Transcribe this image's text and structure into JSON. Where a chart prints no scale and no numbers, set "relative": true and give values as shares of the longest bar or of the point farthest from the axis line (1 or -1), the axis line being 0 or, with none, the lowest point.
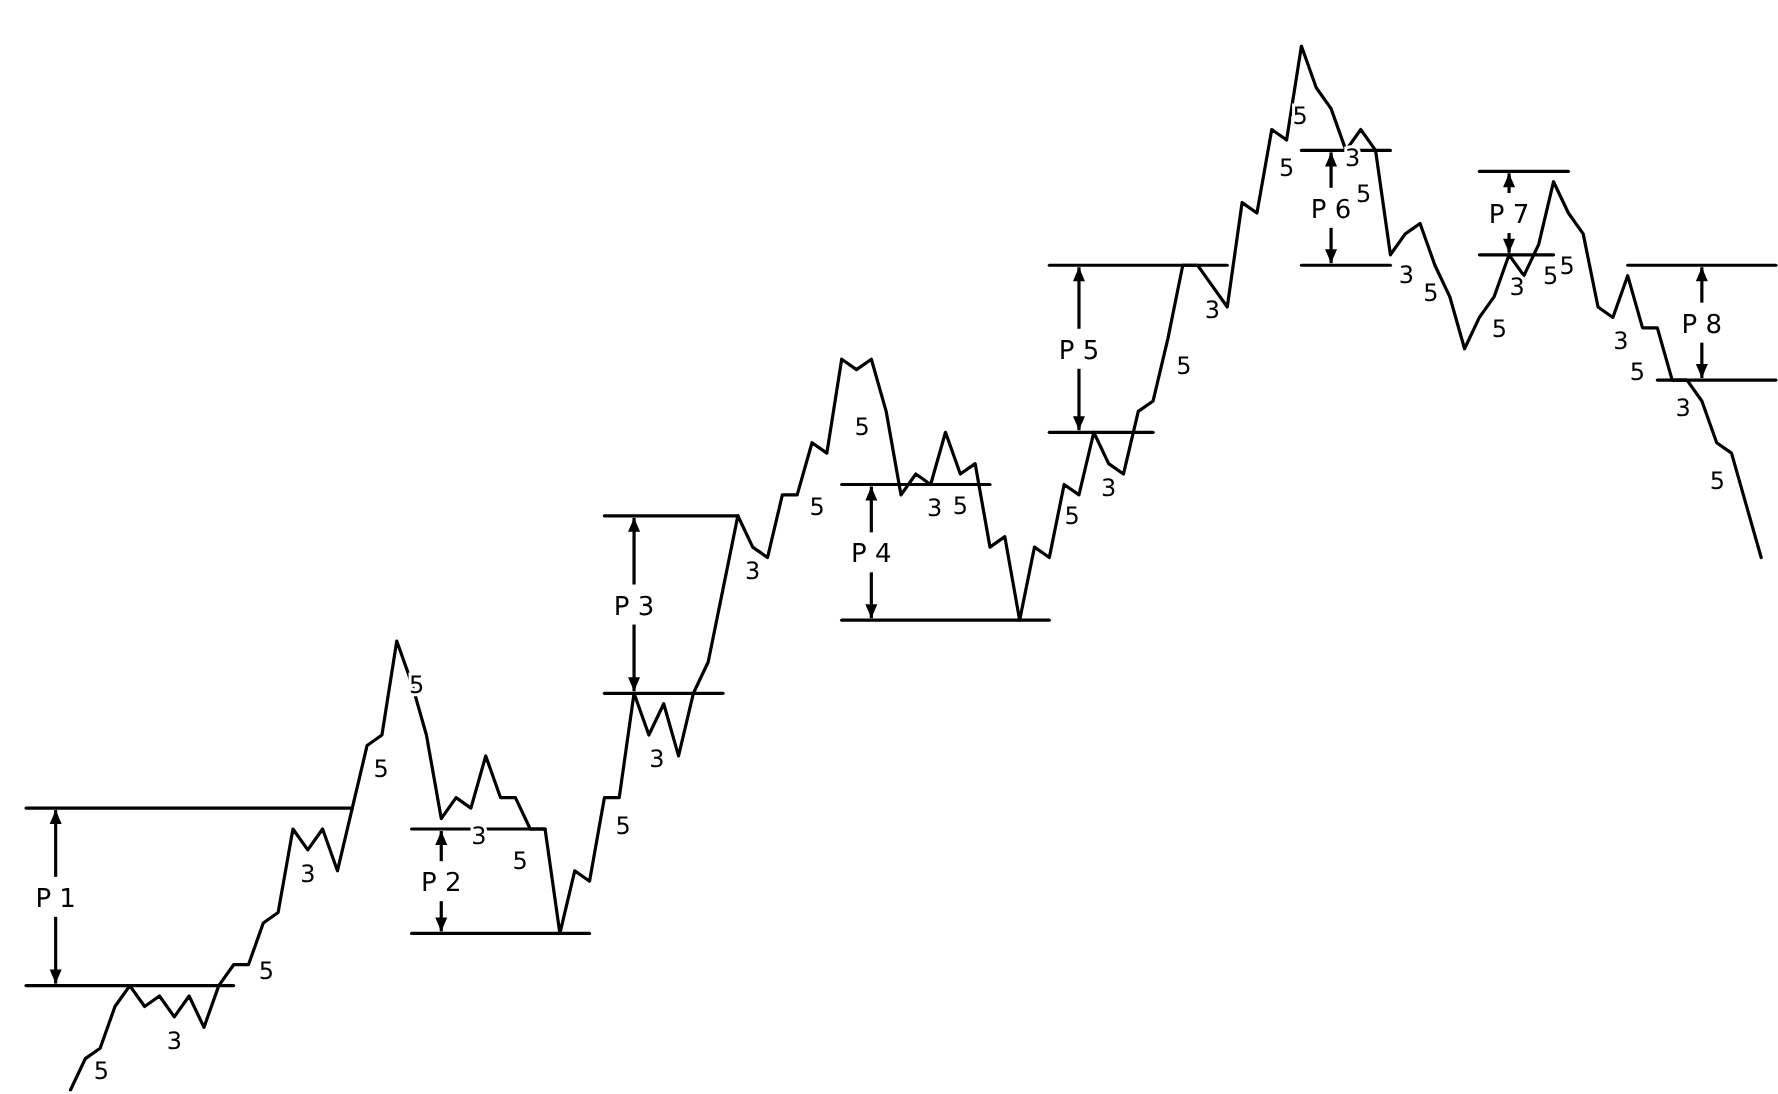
{
  "chart_data": {
    "type": "line",
    "relative": true,
    "marker": "none",
    "annotations": [
      "P 1",
      "P 2",
      "P 3",
      "P 4",
      "P 5",
      "P 6",
      "P 7",
      "P 8",
      "5",
      "3",
      "5",
      "3",
      "5",
      "5",
      "3",
      "5",
      "5",
      "3",
      "3",
      "5",
      "5",
      "3",
      "5",
      "5",
      "3",
      "5",
      "3",
      "5",
      "5",
      "3",
      "5",
      "3",
      "5",
      "5",
      "3",
      "5",
      "5",
      "3",
      "5",
      "3",
      "5"
    ],
    "categories": [
      null,
      null,
      null,
      null,
      null,
      null,
      null,
      null,
      null,
      null,
      null,
      null,
      null,
      null,
      null,
      null,
      null,
      null,
      null,
      null,
      null,
      null,
      null,
      null,
      null,
      null,
      null,
      null,
      null,
      null,
      null,
      null,
      null,
      null,
      null,
      null,
      null,
      null,
      null,
      null,
      null,
      null,
      null,
      null,
      null,
      null,
      null,
      null,
      null,
      null,
      null,
      null,
      null,
      null,
      null,
      null,
      null,
      null,
      null,
      null,
      null,
      null,
      null,
      null,
      null,
      null,
      null,
      null,
      null,
      null,
      null,
      null,
      null,
      null,
      null,
      null,
      null,
      null,
      null,
      null,
      null,
      null,
      null,
      null,
      null,
      null,
      null,
      null,
      null,
      null,
      null,
      null,
      null,
      null,
      null,
      null,
      null,
      null,
      null,
      null,
      null,
      null,
      null,
      null,
      null,
      null,
      null,
      null,
      null,
      null,
      null,
      null,
      null,
      null,
      null,
      null,
      null,
      null,
      null
    ],
    "series": [
      {
        "color": "#000000",
        "values": [
          null,
          null,
          null,
          0,
          0.03,
          0.04,
          0.08,
          0.1,
          0.08,
          0.09,
          0.07,
          0.09,
          0.06,
          0.1,
          0.12,
          0.12,
          0.16,
          0.17,
          0.25,
          0.23,
          0.25,
          0.21,
          0.27,
          0.33,
          0.34,
          0.43,
          0.39,
          0.34,
          0.26,
          0.28,
          0.27,
          0.32,
          0.28,
          0.28,
          0.25,
          0.25,
          0.15,
          0.21,
          0.2,
          0.28,
          0.28,
          0.38,
          0.34,
          0.37,
          0.32,
          0.38,
          0.41,
          0.48,
          0.55,
          0.52,
          0.51,
          0.57,
          0.57,
          0.62,
          0.61,
          0.7,
          0.69,
          0.7,
          0.65,
          0.57,
          0.59,
          0.58,
          0.63,
          0.59,
          0.6,
          0.52,
          0.53,
          0.45,
          0.52,
          0.51,
          0.58,
          0.57,
          0.63,
          0.6,
          0.59,
          0.65,
          0.66,
          0.72,
          0.79,
          0.79,
          0.77,
          0.75,
          0.85,
          0.84,
          0.92,
          0.91,
          1,
          0.96,
          0.94,
          0.9,
          0.92,
          0.9,
          0.8,
          0.82,
          0.83,
          0.79,
          0.76,
          0.71,
          0.74,
          0.76,
          0.8,
          0.78,
          0.81,
          0.87,
          0.84,
          0.82,
          0.75,
          0.74,
          0.78,
          0.73,
          0.73,
          0.68,
          0.68,
          0.66,
          0.62,
          0.61,
          0.56,
          0.51,
          null
        ]
      },
      {
        "color": "#000000",
        "values": [
          0.27,
          0.27,
          0.27,
          0.27,
          0.27,
          0.27,
          0.27,
          0.27,
          0.27,
          0.27,
          0.27,
          0.27,
          0.27,
          0.27,
          0.27,
          0.27,
          0.27,
          0.27,
          0.27,
          0.27,
          0.27,
          0.27,
          0.27,
          null,
          null,
          null,
          null,
          null,
          null,
          null,
          null,
          null,
          null,
          null,
          null,
          null,
          null,
          null,
          null,
          null,
          null,
          null,
          null,
          null,
          null,
          null,
          null,
          null,
          null,
          null,
          null,
          null,
          null,
          null,
          null,
          null,
          null,
          null,
          null,
          null,
          null,
          null,
          null,
          null,
          null,
          null,
          null,
          null,
          null,
          null,
          null,
          null,
          null,
          null,
          null,
          null,
          null,
          null,
          null,
          null,
          null,
          null,
          null,
          null,
          null,
          null,
          null,
          null,
          null,
          null,
          null,
          null,
          null,
          null,
          null,
          null,
          null,
          null,
          null,
          null,
          null,
          null,
          null,
          null,
          null,
          null,
          null,
          null,
          null,
          null,
          null,
          null,
          null,
          null,
          null,
          null,
          null,
          null,
          null
        ]
      },
      {
        "color": "#000000",
        "values": [
          0.1,
          0.1,
          0.1,
          0.1,
          0.1,
          0.1,
          0.1,
          0.1,
          0.1,
          0.1,
          0.1,
          0.1,
          0.1,
          0.1,
          0.1,
          null,
          null,
          null,
          null,
          null,
          null,
          null,
          null,
          null,
          null,
          null,
          null,
          null,
          null,
          null,
          null,
          null,
          null,
          null,
          null,
          null,
          null,
          null,
          null,
          null,
          null,
          null,
          null,
          null,
          null,
          null,
          null,
          null,
          null,
          null,
          null,
          null,
          null,
          null,
          null,
          null,
          null,
          null,
          null,
          null,
          null,
          null,
          null,
          null,
          null,
          null,
          null,
          null,
          null,
          null,
          null,
          null,
          null,
          null,
          null,
          null,
          null,
          null,
          null,
          null,
          null,
          null,
          null,
          null,
          null,
          null,
          null,
          null,
          null,
          null,
          null,
          null,
          null,
          null,
          null,
          null,
          null,
          null,
          null,
          null,
          null,
          null,
          null,
          null,
          null,
          null,
          null,
          null,
          null,
          null,
          null,
          null,
          null,
          null,
          null,
          null,
          null,
          null,
          null
        ]
      },
      {
        "color": "#000000",
        "values": [
          null,
          null,
          null,
          null,
          null,
          null,
          null,
          null,
          null,
          null,
          null,
          null,
          null,
          null,
          null,
          null,
          null,
          null,
          null,
          null,
          null,
          null,
          null,
          null,
          null,
          null,
          0.25,
          0.25,
          0.25,
          0.25,
          0.25,
          0.25,
          0.25,
          0.25,
          0.25,
          0.25,
          null,
          null,
          null,
          null,
          null,
          null,
          null,
          null,
          null,
          null,
          null,
          null,
          null,
          null,
          null,
          null,
          null,
          null,
          null,
          null,
          null,
          null,
          null,
          null,
          null,
          null,
          null,
          null,
          null,
          null,
          null,
          null,
          null,
          null,
          null,
          null,
          null,
          null,
          null,
          null,
          null,
          null,
          null,
          null,
          null,
          null,
          null,
          null,
          null,
          null,
          null,
          null,
          null,
          null,
          null,
          null,
          null,
          null,
          null,
          null,
          null,
          null,
          null,
          null,
          null,
          null,
          null,
          null,
          null,
          null,
          null,
          null,
          null,
          null,
          null,
          null,
          null,
          null,
          null,
          null,
          null,
          null,
          null
        ]
      },
      {
        "color": "#000000",
        "values": [
          null,
          null,
          null,
          null,
          null,
          null,
          null,
          null,
          null,
          null,
          null,
          null,
          null,
          null,
          null,
          null,
          null,
          null,
          null,
          null,
          null,
          null,
          null,
          null,
          null,
          null,
          0.15,
          0.15,
          0.15,
          0.15,
          0.15,
          0.15,
          0.15,
          0.15,
          0.15,
          0.15,
          0.15,
          0.15,
          0.15,
          null,
          null,
          null,
          null,
          null,
          null,
          null,
          null,
          null,
          null,
          null,
          null,
          null,
          null,
          null,
          null,
          null,
          null,
          null,
          null,
          null,
          null,
          null,
          null,
          null,
          null,
          null,
          null,
          null,
          null,
          null,
          null,
          null,
          null,
          null,
          null,
          null,
          null,
          null,
          null,
          null,
          null,
          null,
          null,
          null,
          null,
          null,
          null,
          null,
          null,
          null,
          null,
          null,
          null,
          null,
          null,
          null,
          null,
          null,
          null,
          null,
          null,
          null,
          null,
          null,
          null,
          null,
          null,
          null,
          null,
          null,
          null,
          null,
          null,
          null,
          null,
          null,
          null,
          null,
          null
        ]
      },
      {
        "color": "#000000",
        "values": [
          null,
          null,
          null,
          null,
          null,
          null,
          null,
          null,
          null,
          null,
          null,
          null,
          null,
          null,
          null,
          null,
          null,
          null,
          null,
          null,
          null,
          null,
          null,
          null,
          null,
          null,
          null,
          null,
          null,
          null,
          null,
          null,
          null,
          null,
          null,
          null,
          null,
          null,
          null,
          0.55,
          0.55,
          0.55,
          0.55,
          0.55,
          0.55,
          0.55,
          0.55,
          0.55,
          0.55,
          null,
          null,
          null,
          null,
          null,
          null,
          null,
          null,
          null,
          null,
          null,
          null,
          null,
          null,
          null,
          null,
          null,
          null,
          null,
          null,
          null,
          null,
          null,
          null,
          null,
          null,
          null,
          null,
          null,
          null,
          null,
          null,
          null,
          null,
          null,
          null,
          null,
          null,
          null,
          null,
          null,
          null,
          null,
          null,
          null,
          null,
          null,
          null,
          null,
          null,
          null,
          null,
          null,
          null,
          null,
          null,
          null,
          null,
          null,
          null,
          null,
          null,
          null,
          null,
          null,
          null,
          null,
          null,
          null,
          null
        ]
      },
      {
        "color": "#000000",
        "values": [
          null,
          null,
          null,
          null,
          null,
          null,
          null,
          null,
          null,
          null,
          null,
          null,
          null,
          null,
          null,
          null,
          null,
          null,
          null,
          null,
          null,
          null,
          null,
          null,
          null,
          null,
          null,
          null,
          null,
          null,
          null,
          null,
          null,
          null,
          null,
          null,
          null,
          null,
          null,
          0.38,
          0.38,
          0.38,
          0.38,
          0.38,
          0.38,
          0.38,
          0.38,
          0.38,
          null,
          null,
          null,
          null,
          null,
          null,
          null,
          null,
          null,
          null,
          null,
          null,
          null,
          null,
          null,
          null,
          null,
          null,
          null,
          null,
          null,
          null,
          null,
          null,
          null,
          null,
          null,
          null,
          null,
          null,
          null,
          null,
          null,
          null,
          null,
          null,
          null,
          null,
          null,
          null,
          null,
          null,
          null,
          null,
          null,
          null,
          null,
          null,
          null,
          null,
          null,
          null,
          null,
          null,
          null,
          null,
          null,
          null,
          null,
          null,
          null,
          null,
          null,
          null,
          null,
          null,
          null,
          null,
          null,
          null,
          null
        ]
      },
      {
        "color": "#000000",
        "values": [
          null,
          null,
          null,
          null,
          null,
          null,
          null,
          null,
          null,
          null,
          null,
          null,
          null,
          null,
          null,
          null,
          null,
          null,
          null,
          null,
          null,
          null,
          null,
          null,
          null,
          null,
          null,
          null,
          null,
          null,
          null,
          null,
          null,
          null,
          null,
          null,
          null,
          null,
          null,
          null,
          null,
          null,
          null,
          null,
          null,
          null,
          null,
          null,
          null,
          null,
          null,
          null,
          null,
          null,
          null,
          0.58,
          0.58,
          0.58,
          0.58,
          0.58,
          0.58,
          0.58,
          0.58,
          0.58,
          0.58,
          0.58,
          null,
          null,
          null,
          null,
          null,
          null,
          null,
          null,
          null,
          null,
          null,
          null,
          null,
          null,
          null,
          null,
          null,
          null,
          null,
          null,
          null,
          null,
          null,
          null,
          null,
          null,
          null,
          null,
          null,
          null,
          null,
          null,
          null,
          null,
          null,
          null,
          null,
          null,
          null,
          null,
          null,
          null,
          null,
          null,
          null,
          null,
          null,
          null,
          null,
          null,
          null,
          null,
          null
        ]
      },
      {
        "color": "#000000",
        "values": [
          null,
          null,
          null,
          null,
          null,
          null,
          null,
          null,
          null,
          null,
          null,
          null,
          null,
          null,
          null,
          null,
          null,
          null,
          null,
          null,
          null,
          null,
          null,
          null,
          null,
          null,
          null,
          null,
          null,
          null,
          null,
          null,
          null,
          null,
          null,
          null,
          null,
          null,
          null,
          null,
          null,
          null,
          null,
          null,
          null,
          null,
          null,
          null,
          null,
          null,
          null,
          null,
          null,
          null,
          null,
          0.45,
          0.45,
          0.45,
          0.45,
          0.45,
          0.45,
          0.45,
          0.45,
          0.45,
          0.45,
          0.45,
          0.45,
          0.45,
          0.45,
          0.45,
          null,
          null,
          null,
          null,
          null,
          null,
          null,
          null,
          null,
          null,
          null,
          null,
          null,
          null,
          null,
          null,
          null,
          null,
          null,
          null,
          null,
          null,
          null,
          null,
          null,
          null,
          null,
          null,
          null,
          null,
          null,
          null,
          null,
          null,
          null,
          null,
          null,
          null,
          null,
          null,
          null,
          null,
          null,
          null,
          null,
          null,
          null,
          null,
          null
        ]
      },
      {
        "color": "#000000",
        "values": [
          null,
          null,
          null,
          null,
          null,
          null,
          null,
          null,
          null,
          null,
          null,
          null,
          null,
          null,
          null,
          null,
          null,
          null,
          null,
          null,
          null,
          null,
          null,
          null,
          null,
          null,
          null,
          null,
          null,
          null,
          null,
          null,
          null,
          null,
          null,
          null,
          null,
          null,
          null,
          null,
          null,
          null,
          null,
          null,
          null,
          null,
          null,
          null,
          null,
          null,
          null,
          null,
          null,
          null,
          null,
          null,
          null,
          null,
          null,
          null,
          null,
          null,
          null,
          null,
          null,
          null,
          null,
          null,
          null,
          0.79,
          0.79,
          0.79,
          0.79,
          0.79,
          0.79,
          0.79,
          0.79,
          0.79,
          0.79,
          0.79,
          0.79,
          0.79,
          null,
          null,
          null,
          null,
          null,
          null,
          null,
          null,
          null,
          null,
          null,
          null,
          null,
          null,
          null,
          null,
          null,
          null,
          null,
          null,
          null,
          null,
          null,
          null,
          null,
          null,
          null,
          null,
          null,
          null,
          null,
          null,
          null,
          null,
          null,
          null,
          null
        ]
      },
      {
        "color": "#000000",
        "values": [
          null,
          null,
          null,
          null,
          null,
          null,
          null,
          null,
          null,
          null,
          null,
          null,
          null,
          null,
          null,
          null,
          null,
          null,
          null,
          null,
          null,
          null,
          null,
          null,
          null,
          null,
          null,
          null,
          null,
          null,
          null,
          null,
          null,
          null,
          null,
          null,
          null,
          null,
          null,
          null,
          null,
          null,
          null,
          null,
          null,
          null,
          null,
          null,
          null,
          null,
          null,
          null,
          null,
          null,
          null,
          null,
          null,
          null,
          null,
          null,
          null,
          null,
          null,
          null,
          null,
          null,
          null,
          null,
          null,
          0.63,
          0.63,
          0.63,
          0.63,
          0.63,
          0.63,
          0.63,
          0.63,
          null,
          null,
          null,
          null,
          null,
          null,
          null,
          null,
          null,
          null,
          null,
          null,
          null,
          null,
          null,
          null,
          null,
          null,
          null,
          null,
          null,
          null,
          null,
          null,
          null,
          null,
          null,
          null,
          null,
          null,
          null,
          null,
          null,
          null,
          null,
          null,
          null,
          null,
          null,
          null,
          null,
          null
        ]
      },
      {
        "color": "#000000",
        "values": [
          null,
          null,
          null,
          null,
          null,
          null,
          null,
          null,
          null,
          null,
          null,
          null,
          null,
          null,
          null,
          null,
          null,
          null,
          null,
          null,
          null,
          null,
          null,
          null,
          null,
          null,
          null,
          null,
          null,
          null,
          null,
          null,
          null,
          null,
          null,
          null,
          null,
          null,
          null,
          null,
          null,
          null,
          null,
          null,
          null,
          null,
          null,
          null,
          null,
          null,
          null,
          null,
          null,
          null,
          null,
          null,
          null,
          null,
          null,
          null,
          null,
          null,
          null,
          null,
          null,
          null,
          null,
          null,
          null,
          null,
          null,
          null,
          null,
          null,
          null,
          null,
          null,
          null,
          null,
          null,
          null,
          null,
          null,
          null,
          null,
          null,
          0.9,
          0.9,
          0.9,
          0.9,
          0.9,
          0.9,
          0.9,
          null,
          null,
          null,
          null,
          null,
          null,
          null,
          null,
          null,
          null,
          null,
          null,
          null,
          null,
          null,
          null,
          null,
          null,
          null,
          null,
          null,
          null,
          null,
          null,
          null,
          null
        ]
      },
      {
        "color": "#000000",
        "values": [
          null,
          null,
          null,
          null,
          null,
          null,
          null,
          null,
          null,
          null,
          null,
          null,
          null,
          null,
          null,
          null,
          null,
          null,
          null,
          null,
          null,
          null,
          null,
          null,
          null,
          null,
          null,
          null,
          null,
          null,
          null,
          null,
          null,
          null,
          null,
          null,
          null,
          null,
          null,
          null,
          null,
          null,
          null,
          null,
          null,
          null,
          null,
          null,
          null,
          null,
          null,
          null,
          null,
          null,
          null,
          null,
          null,
          null,
          null,
          null,
          null,
          null,
          null,
          null,
          null,
          null,
          null,
          null,
          null,
          null,
          null,
          null,
          null,
          null,
          null,
          null,
          null,
          null,
          null,
          null,
          null,
          null,
          null,
          null,
          null,
          null,
          0.79,
          0.79,
          0.79,
          0.79,
          0.79,
          0.79,
          0.79,
          null,
          null,
          null,
          null,
          null,
          null,
          null,
          null,
          null,
          null,
          null,
          null,
          null,
          null,
          null,
          null,
          null,
          null,
          null,
          null,
          null,
          null,
          null,
          null,
          null,
          null
        ]
      },
      {
        "color": "#000000",
        "values": [
          null,
          null,
          null,
          null,
          null,
          null,
          null,
          null,
          null,
          null,
          null,
          null,
          null,
          null,
          null,
          null,
          null,
          null,
          null,
          null,
          null,
          null,
          null,
          null,
          null,
          null,
          null,
          null,
          null,
          null,
          null,
          null,
          null,
          null,
          null,
          null,
          null,
          null,
          null,
          null,
          null,
          null,
          null,
          null,
          null,
          null,
          null,
          null,
          null,
          null,
          null,
          null,
          null,
          null,
          null,
          null,
          null,
          null,
          null,
          null,
          null,
          null,
          null,
          null,
          null,
          null,
          null,
          null,
          null,
          null,
          null,
          null,
          null,
          null,
          null,
          null,
          null,
          null,
          null,
          null,
          null,
          null,
          null,
          null,
          null,
          null,
          null,
          null,
          null,
          null,
          null,
          null,
          null,
          null,
          null,
          null,
          null,
          null,
          0.88,
          0.88,
          0.88,
          0.88,
          0.88,
          0.88,
          0.88,
          null,
          null,
          null,
          null,
          null,
          null,
          null,
          null,
          null,
          null,
          null,
          null,
          null,
          null
        ]
      },
      {
        "color": "#000000",
        "values": [
          null,
          null,
          null,
          null,
          null,
          null,
          null,
          null,
          null,
          null,
          null,
          null,
          null,
          null,
          null,
          null,
          null,
          null,
          null,
          null,
          null,
          null,
          null,
          null,
          null,
          null,
          null,
          null,
          null,
          null,
          null,
          null,
          null,
          null,
          null,
          null,
          null,
          null,
          null,
          null,
          null,
          null,
          null,
          null,
          null,
          null,
          null,
          null,
          null,
          null,
          null,
          null,
          null,
          null,
          null,
          null,
          null,
          null,
          null,
          null,
          null,
          null,
          null,
          null,
          null,
          null,
          null,
          null,
          null,
          null,
          null,
          null,
          null,
          null,
          null,
          null,
          null,
          null,
          null,
          null,
          null,
          null,
          null,
          null,
          null,
          null,
          null,
          null,
          null,
          null,
          null,
          null,
          null,
          null,
          null,
          null,
          null,
          null,
          0.8,
          0.8,
          0.8,
          0.8,
          0.8,
          0.8,
          null,
          null,
          null,
          null,
          null,
          null,
          null,
          null,
          null,
          null,
          null,
          null,
          null,
          null,
          null
        ]
      },
      {
        "color": "#000000",
        "values": [
          null,
          null,
          null,
          null,
          null,
          null,
          null,
          null,
          null,
          null,
          null,
          null,
          null,
          null,
          null,
          null,
          null,
          null,
          null,
          null,
          null,
          null,
          null,
          null,
          null,
          null,
          null,
          null,
          null,
          null,
          null,
          null,
          null,
          null,
          null,
          null,
          null,
          null,
          null,
          null,
          null,
          null,
          null,
          null,
          null,
          null,
          null,
          null,
          null,
          null,
          null,
          null,
          null,
          null,
          null,
          null,
          null,
          null,
          null,
          null,
          null,
          null,
          null,
          null,
          null,
          null,
          null,
          null,
          null,
          null,
          null,
          null,
          null,
          null,
          null,
          null,
          null,
          null,
          null,
          null,
          null,
          null,
          null,
          null,
          null,
          null,
          null,
          null,
          null,
          null,
          null,
          null,
          null,
          null,
          null,
          null,
          null,
          null,
          null,
          null,
          null,
          null,
          null,
          null,
          null,
          null,
          null,
          null,
          0.79,
          0.79,
          0.79,
          0.79,
          0.79,
          0.79,
          0.79,
          0.79,
          0.79,
          0.79,
          0.79
        ]
      },
      {
        "color": "#000000",
        "values": [
          null,
          null,
          null,
          null,
          null,
          null,
          null,
          null,
          null,
          null,
          null,
          null,
          null,
          null,
          null,
          null,
          null,
          null,
          null,
          null,
          null,
          null,
          null,
          null,
          null,
          null,
          null,
          null,
          null,
          null,
          null,
          null,
          null,
          null,
          null,
          null,
          null,
          null,
          null,
          null,
          null,
          null,
          null,
          null,
          null,
          null,
          null,
          null,
          null,
          null,
          null,
          null,
          null,
          null,
          null,
          null,
          null,
          null,
          null,
          null,
          null,
          null,
          null,
          null,
          null,
          null,
          null,
          null,
          null,
          null,
          null,
          null,
          null,
          null,
          null,
          null,
          null,
          null,
          null,
          null,
          null,
          null,
          null,
          null,
          null,
          null,
          null,
          null,
          null,
          null,
          null,
          null,
          null,
          null,
          null,
          null,
          null,
          null,
          null,
          null,
          null,
          null,
          null,
          null,
          null,
          null,
          null,
          null,
          null,
          null,
          0.68,
          0.68,
          0.68,
          0.68,
          0.68,
          0.68,
          0.68,
          0.68,
          0.68
        ]
      }
    ]
  }
}
